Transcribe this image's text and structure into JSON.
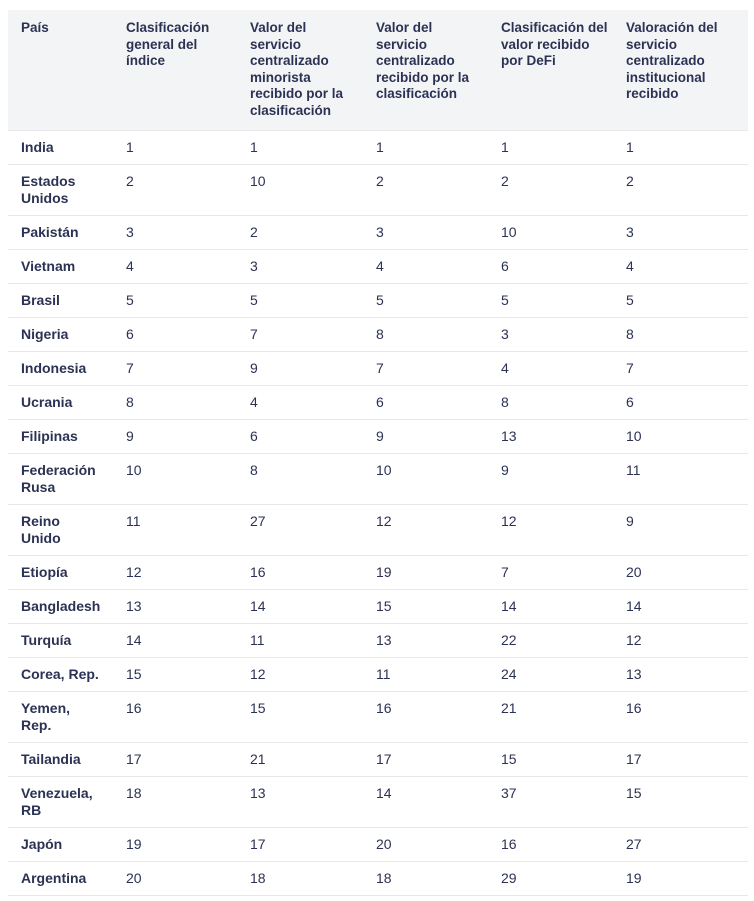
{
  "table": {
    "headers": [
      "País",
      "Clasificación general del índice",
      "Valor del servicio centralizado minorista recibido por la clasificación",
      "Valor del servicio centralizado recibido por la clasificación",
      "Clasificación del valor recibido por DeFi",
      "Valoración del servicio centralizado institucional recibido"
    ],
    "rows": [
      [
        "India",
        1,
        1,
        1,
        1,
        1
      ],
      [
        "Estados Unidos",
        2,
        10,
        2,
        2,
        2
      ],
      [
        "Pakistán",
        3,
        2,
        3,
        10,
        3
      ],
      [
        "Vietnam",
        4,
        3,
        4,
        6,
        4
      ],
      [
        "Brasil",
        5,
        5,
        5,
        5,
        5
      ],
      [
        "Nigeria",
        6,
        7,
        8,
        3,
        8
      ],
      [
        "Indonesia",
        7,
        9,
        7,
        4,
        7
      ],
      [
        "Ucrania",
        8,
        4,
        6,
        8,
        6
      ],
      [
        "Filipinas",
        9,
        6,
        9,
        13,
        10
      ],
      [
        "Federación Rusa",
        10,
        8,
        10,
        9,
        11
      ],
      [
        "Reino Unido",
        11,
        27,
        12,
        12,
        9
      ],
      [
        "Etiopía",
        12,
        16,
        19,
        7,
        20
      ],
      [
        "Bangladesh",
        13,
        14,
        15,
        14,
        14
      ],
      [
        "Turquía",
        14,
        11,
        13,
        22,
        12
      ],
      [
        "Corea, Rep.",
        15,
        12,
        11,
        24,
        13
      ],
      [
        "Yemen, Rep.",
        16,
        15,
        16,
        21,
        16
      ],
      [
        "Tailandia",
        17,
        21,
        17,
        15,
        17
      ],
      [
        "Venezuela, RB",
        18,
        13,
        14,
        37,
        15
      ],
      [
        "Japón",
        19,
        17,
        20,
        16,
        27
      ],
      [
        "Argentina",
        20,
        18,
        18,
        29,
        19
      ]
    ]
  }
}
